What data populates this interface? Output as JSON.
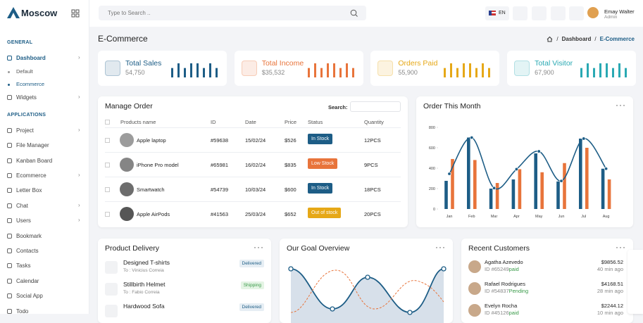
{
  "brand": "Moscow",
  "search_placeholder": "Type to Search ..",
  "language": "EN",
  "user": {
    "name": "Emay Walter",
    "role": "Admin"
  },
  "sidebar": [
    {
      "title": "GENERAL",
      "items": [
        {
          "label": "Dashboard",
          "active": true,
          "submenu": true,
          "children": [
            {
              "label": "Default",
              "active": false
            },
            {
              "label": "Ecommerce",
              "active": true
            }
          ]
        },
        {
          "label": "Widgets",
          "submenu": true
        }
      ]
    },
    {
      "title": "APPLICATIONS",
      "items": [
        {
          "label": "Project",
          "submenu": true
        },
        {
          "label": "File Manager"
        },
        {
          "label": "Kanban Board"
        },
        {
          "label": "Ecommerce",
          "submenu": true
        },
        {
          "label": "Letter Box"
        },
        {
          "label": "Chat",
          "submenu": true
        },
        {
          "label": "Users",
          "submenu": true
        },
        {
          "label": "Bookmark"
        },
        {
          "label": "Contacts"
        },
        {
          "label": "Tasks"
        },
        {
          "label": "Calendar"
        },
        {
          "label": "Social App"
        },
        {
          "label": "Todo"
        }
      ]
    }
  ],
  "page_title": "E-Commerce",
  "breadcrumb": [
    "Dashboard",
    "E-Commerce"
  ],
  "stats": [
    {
      "label": "Total Sales",
      "value": "54,750",
      "color": "#1d5d86",
      "bars": [
        6,
        9,
        6,
        9,
        9,
        6,
        9,
        6
      ]
    },
    {
      "label": "Total Income",
      "value": "$35,532",
      "color": "#e8743b",
      "bars": [
        6,
        9,
        6,
        9,
        9,
        6,
        9,
        6
      ]
    },
    {
      "label": "Orders Paid",
      "value": "55,900",
      "color": "#e6a817",
      "bars": [
        6,
        9,
        6,
        9,
        9,
        6,
        9,
        6
      ]
    },
    {
      "label": "Total Visitor",
      "value": "67,900",
      "color": "#2aa9b3",
      "bars": [
        6,
        9,
        6,
        9,
        9,
        6,
        9,
        6
      ]
    }
  ],
  "orders": {
    "title": "Manage Order",
    "search_label": "Search:",
    "columns": [
      "Products name",
      "ID",
      "Date",
      "Price",
      "Status",
      "Quantity"
    ],
    "rows": [
      {
        "cells": [
          "Apple laptop",
          "#59638",
          "15/02/24",
          "$526",
          "In Stock",
          "12PCS"
        ],
        "status_color": "#1d5d86"
      },
      {
        "cells": [
          "iPhone Pro model",
          "#65981",
          "16/02/24",
          "$835",
          "Low Stock",
          "9PCS"
        ],
        "status_color": "#e8743b"
      },
      {
        "cells": [
          "Smartwatch",
          "#54739",
          "10/03/24",
          "$600",
          "In Stock",
          "18PCS"
        ],
        "status_color": "#1d5d86"
      },
      {
        "cells": [
          "Apple AirPods",
          "#41563",
          "25/03/24",
          "$652",
          "Out of stock",
          "20PCS"
        ],
        "status_color": "#e6a817"
      }
    ]
  },
  "chart_data": {
    "type": "bar",
    "title": "Order This Month",
    "categories": [
      "Jan",
      "Feb",
      "Mar",
      "Apr",
      "May",
      "Jun",
      "Jul",
      "Aug"
    ],
    "series": [
      {
        "color": "#1d5d86",
        "values": [
          276,
          700,
          200,
          290,
          545,
          270,
          690,
          395
        ]
      },
      {
        "color": "#e8743b",
        "values": [
          490,
          480,
          255,
          390,
          360,
          450,
          600,
          290
        ]
      },
      {
        "type": "line",
        "color": "#1d5d86",
        "values": [
          345,
          700,
          205,
          390,
          565,
          275,
          690,
          395
        ]
      }
    ],
    "ylim": [
      0,
      800
    ],
    "yticks": [
      0,
      200,
      400,
      600,
      800
    ]
  },
  "delivery": {
    "title": "Product Delivery",
    "items": [
      {
        "name": "Designed T-shirts",
        "to": "To : Vinicius Correia",
        "status": "Delivered",
        "color": "#1d5d86",
        "bg": "#e6eef4"
      },
      {
        "name": "Stillbirth Helmet",
        "to": "To : Fabio Correia",
        "status": "Shipping",
        "color": "#3a9b4a",
        "bg": "#e4f4e4"
      },
      {
        "name": "Hardwood Sofa",
        "status": "Delivered",
        "color": "#1d5d86",
        "bg": "#e6eef4"
      }
    ]
  },
  "goal": {
    "title": "Our Goal Overview"
  },
  "customers": {
    "title": "Recent Customers",
    "items": [
      {
        "name": "Agatha Azevedo",
        "id": "ID #65249",
        "status": "paid",
        "amount": "$9856.52",
        "time": "40 min ago"
      },
      {
        "name": "Rafael Rodrigues",
        "id": "ID #54837",
        "status": "Pending",
        "amount": "$4168.51",
        "time": "28 min ago"
      },
      {
        "name": "Evelyn Rocha",
        "id": "ID #45126",
        "status": "paid",
        "amount": "$2244.12",
        "time": "10 min ago"
      }
    ]
  }
}
